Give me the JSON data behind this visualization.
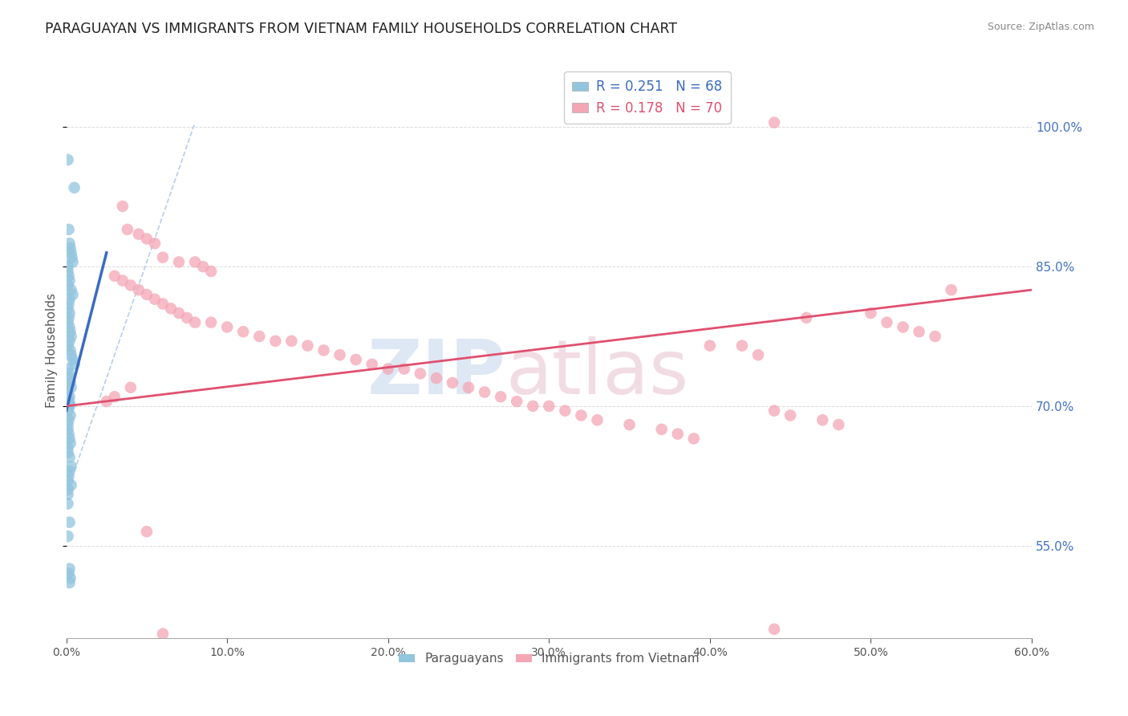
{
  "title": "PARAGUAYAN VS IMMIGRANTS FROM VIETNAM FAMILY HOUSEHOLDS CORRELATION CHART",
  "source": "Source: ZipAtlas.com",
  "ylabel": "Family Households",
  "right_yticks": [
    55.0,
    70.0,
    85.0,
    100.0
  ],
  "blue_scatter_x": [
    0.1,
    0.5,
    0.15,
    0.2,
    0.25,
    0.3,
    0.35,
    0.4,
    0.1,
    0.1,
    0.15,
    0.2,
    0.1,
    0.3,
    0.4,
    0.2,
    0.15,
    0.1,
    0.2,
    0.15,
    0.1,
    0.2,
    0.25,
    0.3,
    0.2,
    0.1,
    0.25,
    0.3,
    0.4,
    0.5,
    0.1,
    0.15,
    0.2,
    0.25,
    0.3,
    0.1,
    0.2,
    0.1,
    0.15,
    0.2,
    0.1,
    0.2,
    0.15,
    0.1,
    0.25,
    0.15,
    0.1,
    0.1,
    0.15,
    0.2,
    0.25,
    0.1,
    0.1,
    0.2,
    0.3,
    0.2,
    0.15,
    0.1,
    0.3,
    0.1,
    0.1,
    0.1,
    0.2,
    0.1,
    0.2,
    0.15,
    0.25,
    0.2
  ],
  "blue_scatter_y": [
    96.5,
    93.5,
    89.0,
    87.5,
    87.0,
    86.5,
    86.0,
    85.5,
    85.0,
    84.5,
    84.0,
    83.5,
    83.0,
    82.5,
    82.0,
    81.5,
    81.0,
    80.5,
    80.0,
    79.5,
    79.0,
    78.5,
    78.0,
    77.5,
    77.0,
    76.5,
    76.0,
    75.5,
    75.0,
    74.5,
    74.0,
    73.5,
    73.0,
    72.5,
    72.0,
    71.5,
    71.0,
    70.8,
    70.5,
    70.3,
    70.0,
    70.0,
    70.0,
    69.5,
    69.0,
    68.5,
    68.0,
    67.5,
    67.0,
    66.5,
    66.0,
    65.5,
    65.0,
    64.5,
    63.5,
    63.0,
    62.5,
    62.0,
    61.5,
    61.0,
    60.5,
    59.5,
    57.5,
    56.0,
    52.5,
    52.0,
    51.5,
    51.0
  ],
  "pink_scatter_x": [
    3.5,
    3.8,
    4.5,
    5.0,
    5.5,
    6.0,
    7.0,
    8.0,
    8.5,
    9.0,
    3.0,
    3.5,
    4.0,
    4.5,
    5.0,
    5.5,
    6.0,
    6.5,
    7.0,
    7.5,
    8.0,
    9.0,
    10.0,
    11.0,
    12.0,
    13.0,
    14.0,
    15.0,
    16.0,
    17.0,
    18.0,
    19.0,
    20.0,
    21.0,
    22.0,
    23.0,
    24.0,
    25.0,
    26.0,
    27.0,
    28.0,
    29.0,
    30.0,
    31.0,
    32.0,
    33.0,
    35.0,
    37.0,
    38.0,
    39.0,
    40.0,
    42.0,
    43.0,
    44.0,
    45.0,
    46.0,
    47.0,
    48.0,
    50.0,
    51.0,
    52.0,
    53.0,
    54.0,
    55.0,
    2.5,
    3.0,
    4.0,
    5.0,
    6.0,
    44.0
  ],
  "pink_scatter_y": [
    91.5,
    89.0,
    88.5,
    88.0,
    87.5,
    86.0,
    85.5,
    85.5,
    85.0,
    84.5,
    84.0,
    83.5,
    83.0,
    82.5,
    82.0,
    81.5,
    81.0,
    80.5,
    80.0,
    79.5,
    79.0,
    79.0,
    78.5,
    78.0,
    77.5,
    77.0,
    77.0,
    76.5,
    76.0,
    75.5,
    75.0,
    74.5,
    74.0,
    74.0,
    73.5,
    73.0,
    72.5,
    72.0,
    71.5,
    71.0,
    70.5,
    70.0,
    70.0,
    69.5,
    69.0,
    68.5,
    68.0,
    67.5,
    67.0,
    66.5,
    76.5,
    76.5,
    75.5,
    69.5,
    69.0,
    79.5,
    68.5,
    68.0,
    80.0,
    79.0,
    78.5,
    78.0,
    77.5,
    82.5,
    70.5,
    71.0,
    72.0,
    56.5,
    45.5,
    46.0
  ],
  "pink_top_x": 44.0,
  "pink_top_y": 100.5,
  "blue_line_x": [
    0.0,
    2.5
  ],
  "blue_line_y": [
    69.5,
    86.5
  ],
  "pink_line_x": [
    0.0,
    60.0
  ],
  "pink_line_y": [
    70.0,
    82.5
  ],
  "diag_line_x": [
    0.5,
    8.0
  ],
  "diag_line_y": [
    63.0,
    100.5
  ],
  "xlim": [
    0,
    60
  ],
  "ylim_data": [
    45,
    107
  ],
  "bg_color": "#ffffff",
  "blue_color": "#92c5de",
  "pink_color": "#f4a6b5",
  "blue_line_color": "#3a6bbf",
  "pink_line_color": "#e05070",
  "diag_color": "#b0c8e8",
  "grid_color": "#d0d0d0",
  "title_color": "#222222",
  "source_color": "#888888",
  "right_axis_color": "#4472c4",
  "ylabel_color": "#555555",
  "watermark_zip_color": "#c8d8ee",
  "watermark_atlas_color": "#e8c0cc"
}
